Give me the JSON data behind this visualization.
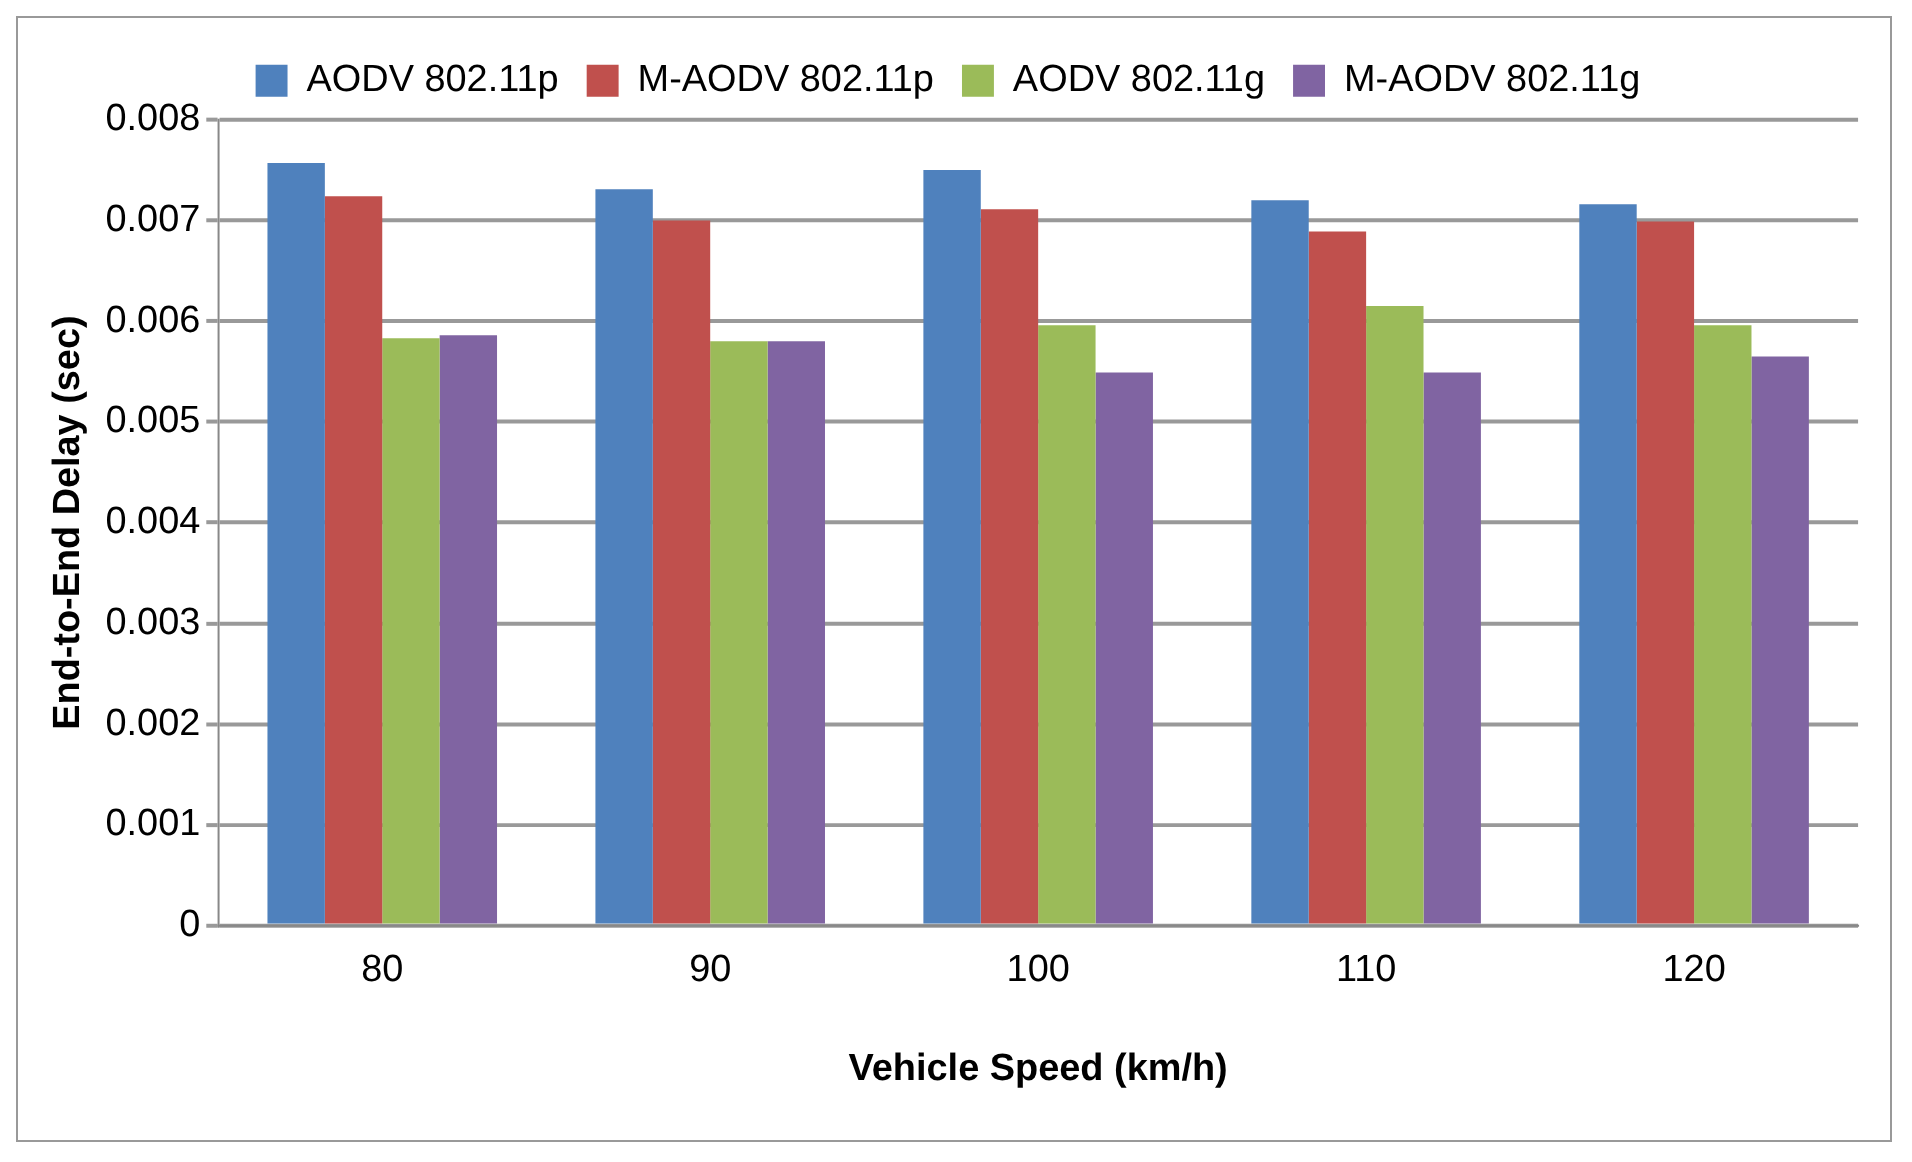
{
  "chart_data": {
    "type": "bar",
    "xlabel": "Vehicle Speed (km/h)",
    "ylabel": "End-to-End Delay (sec)",
    "categories": [
      "80",
      "90",
      "100",
      "110",
      "120"
    ],
    "series": [
      {
        "name": "AODV 802.11p",
        "color": "#4f81bd",
        "values": [
          0.00757,
          0.00731,
          0.0075,
          0.0072,
          0.00716
        ]
      },
      {
        "name": "M-AODV 802.11p",
        "color": "#c0504d",
        "values": [
          0.00724,
          0.007,
          0.00711,
          0.00689,
          0.00699
        ]
      },
      {
        "name": "AODV 802.11g",
        "color": "#9bbb59",
        "values": [
          0.00583,
          0.0058,
          0.00596,
          0.00615,
          0.00596
        ]
      },
      {
        "name": "M-AODV 802.11g",
        "color": "#8064a2",
        "values": [
          0.00586,
          0.0058,
          0.00549,
          0.00549,
          0.00565
        ]
      }
    ],
    "ylim": [
      0,
      0.008
    ],
    "yticks": [
      0,
      0.001,
      0.002,
      0.003,
      0.004,
      0.005,
      0.006,
      0.007,
      0.008
    ],
    "grid": "y",
    "legend": "top"
  }
}
